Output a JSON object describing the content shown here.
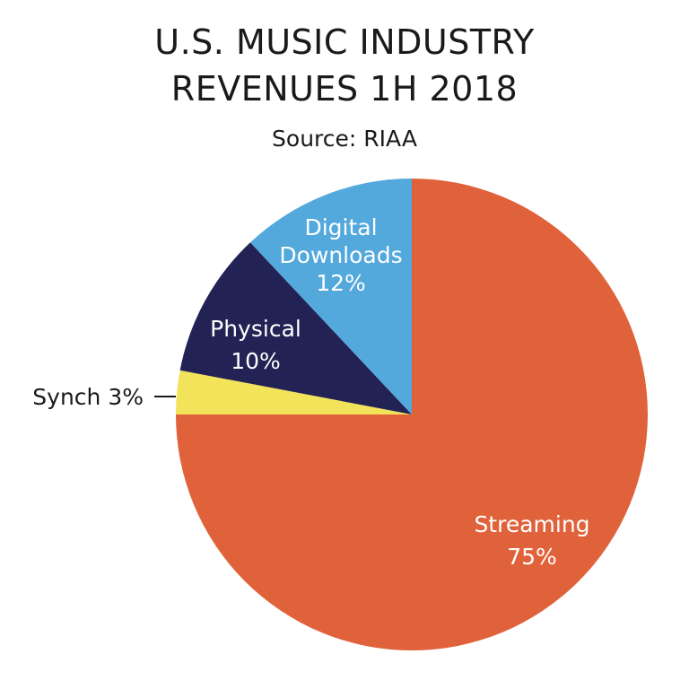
{
  "title_line1": "U.S. MUSIC INDUSTRY",
  "title_line2": "REVENUES 1H 2018",
  "source": "Source: RIAA",
  "chart_data": {
    "type": "pie",
    "title": "U.S. MUSIC INDUSTRY REVENUES 1H 2018",
    "subtitle": "Source: RIAA",
    "slices": [
      {
        "name": "Streaming",
        "value": 75,
        "value_label": "75%",
        "color": "#E0623B",
        "label_color": "#ffffff"
      },
      {
        "name": "Synch",
        "value": 3,
        "value_label": "3%",
        "color": "#F2E35A",
        "label_color": "#1a1a1a",
        "outside_label": "Synch 3%"
      },
      {
        "name": "Physical",
        "value": 10,
        "value_label": "10%",
        "color": "#222255",
        "label_color": "#ffffff"
      },
      {
        "name": "Digital Downloads",
        "name_lines": [
          "Digital",
          "Downloads"
        ],
        "value": 12,
        "value_label": "12%",
        "color": "#53A8DC",
        "label_color": "#ffffff"
      }
    ]
  }
}
